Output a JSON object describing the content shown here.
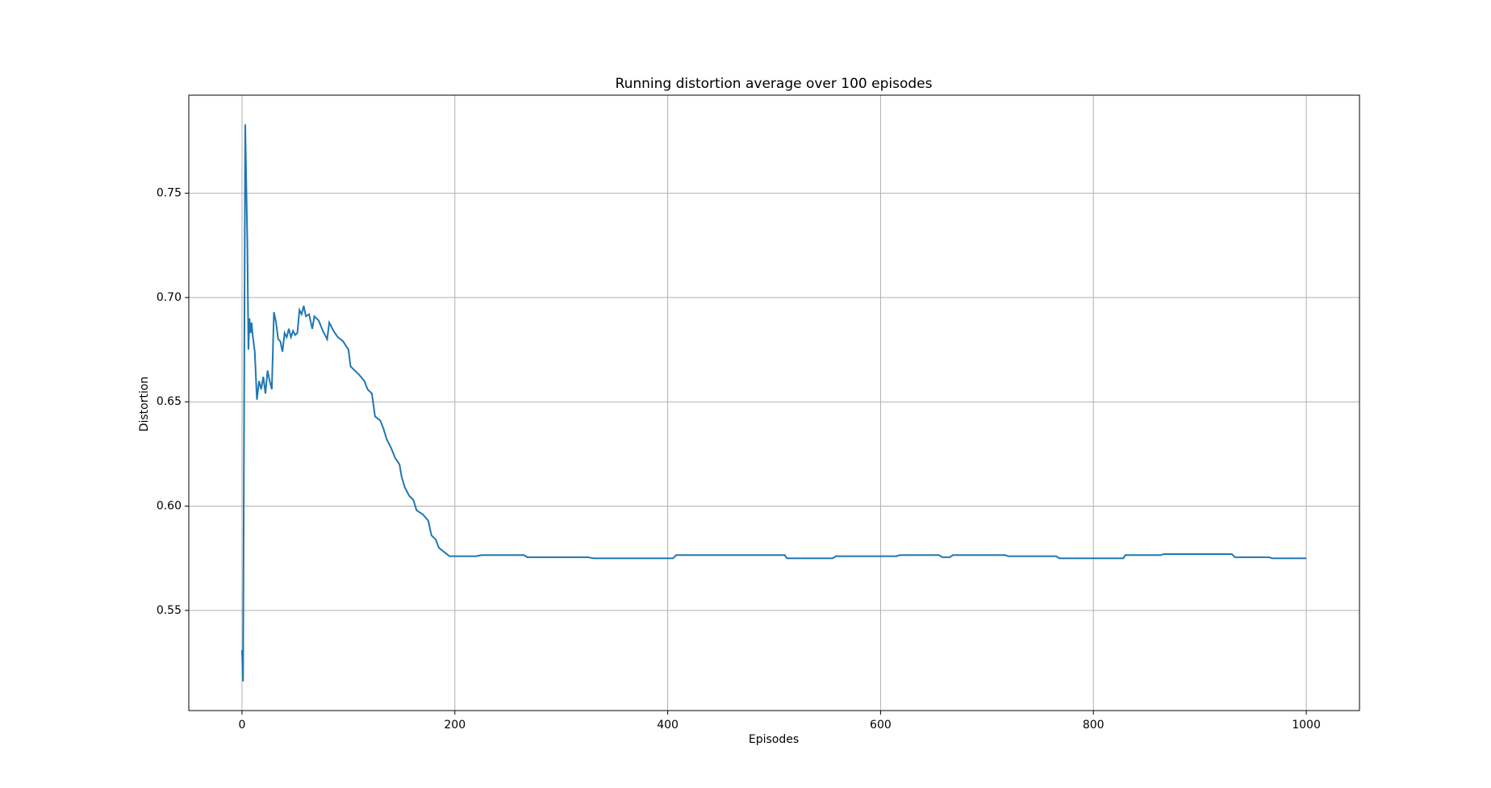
{
  "chart_data": {
    "type": "line",
    "title": "Running distortion average over 100 episodes",
    "x_label": "Episodes",
    "y_label": "Distortion",
    "xlim": [
      -50,
      1050
    ],
    "ylim": [
      0.502,
      0.797
    ],
    "xticks": [
      0,
      200,
      400,
      600,
      800,
      1000
    ],
    "yticks": [
      0.55,
      {
        "value": 0.6,
        "label": "0.60"
      },
      0.65,
      {
        "value": 0.7,
        "label": "0.70"
      },
      0.75
    ],
    "grid": true,
    "series": [
      {
        "name": "Distortion",
        "color": "#1f77b4",
        "x": [
          0,
          1,
          3,
          5,
          6,
          7,
          8,
          9,
          10,
          12,
          14,
          16,
          18,
          20,
          22,
          24,
          26,
          28,
          30,
          32,
          34,
          36,
          38,
          40,
          42,
          44,
          46,
          48,
          50,
          52,
          54,
          56,
          58,
          60,
          63,
          66,
          68,
          72,
          76,
          80,
          82,
          86,
          90,
          95,
          100,
          102,
          106,
          110,
          115,
          118,
          122,
          125,
          130,
          133,
          136,
          140,
          144,
          148,
          150,
          153,
          157,
          161,
          164,
          170,
          175,
          178,
          182,
          185,
          190,
          195,
          220,
          225,
          265,
          268,
          325,
          330,
          405,
          408,
          510,
          512,
          555,
          558,
          615,
          618,
          655,
          658,
          665,
          668,
          717,
          720,
          765,
          768,
          828,
          830,
          863,
          866,
          930,
          933,
          965,
          968,
          1000
        ],
        "values": [
          0.531,
          0.516,
          0.783,
          0.727,
          0.675,
          0.69,
          0.683,
          0.688,
          0.682,
          0.674,
          0.651,
          0.66,
          0.656,
          0.662,
          0.654,
          0.665,
          0.66,
          0.656,
          0.693,
          0.688,
          0.68,
          0.679,
          0.674,
          0.683,
          0.681,
          0.685,
          0.681,
          0.684,
          0.682,
          0.683,
          0.694,
          0.692,
          0.696,
          0.691,
          0.692,
          0.685,
          0.691,
          0.689,
          0.684,
          0.68,
          0.688,
          0.684,
          0.681,
          0.679,
          0.675,
          0.667,
          0.665,
          0.663,
          0.66,
          0.656,
          0.654,
          0.643,
          0.641,
          0.637,
          0.632,
          0.628,
          0.623,
          0.62,
          0.614,
          0.609,
          0.605,
          0.603,
          0.598,
          0.596,
          0.593,
          0.586,
          0.584,
          0.58,
          0.578,
          0.576,
          0.576,
          0.5765,
          0.5765,
          0.5755,
          0.5755,
          0.575,
          0.575,
          0.5765,
          0.5765,
          0.575,
          0.575,
          0.576,
          0.576,
          0.5765,
          0.5765,
          0.5755,
          0.5755,
          0.5765,
          0.5765,
          0.576,
          0.576,
          0.575,
          0.575,
          0.5765,
          0.5765,
          0.577,
          0.577,
          0.5755,
          0.5755,
          0.575,
          0.575
        ]
      }
    ]
  }
}
